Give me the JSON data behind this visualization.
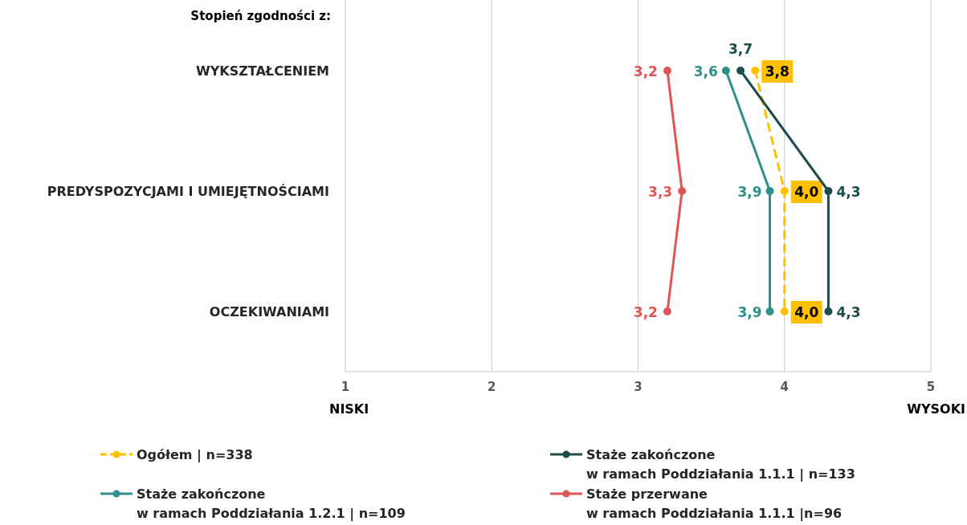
{
  "chart_data": {
    "type": "line",
    "orientation": "horizontal",
    "title": "Stopień zgodności z:",
    "categories": [
      "WYKSZTAŁCENIEM",
      "PREDYSPOZYCJAMI I UMIEJĘTNOŚCIAMI",
      "OCZEKIWANIAMI"
    ],
    "xlim": [
      1,
      5
    ],
    "xticks": [
      1,
      2,
      3,
      4,
      5
    ],
    "grid": "x",
    "legend": "bottom",
    "marker": "circle",
    "annotations": [
      "NISKI",
      "WYSOKI"
    ],
    "series": [
      {
        "name": "Ogółem | n=338",
        "color": "#ffc000",
        "line_style": "dashed",
        "values": [
          3.8,
          4.0,
          4.0
        ],
        "value_labels": [
          "3,8",
          "4,0",
          "4,0"
        ]
      },
      {
        "name": "Staże zakończone\nw ramach Poddziałania 1.1.1 | n=133",
        "color": "#1e4b4b",
        "line_style": "solid",
        "values": [
          3.7,
          4.3,
          4.3
        ],
        "value_labels": [
          "3,7",
          "4,3",
          "4,3"
        ]
      },
      {
        "name": "Staże zakończone\nw ramach Poddziałania 1.2.1 | n=109",
        "color": "#2e9089",
        "line_style": "solid",
        "values": [
          3.6,
          3.9,
          3.9
        ],
        "value_labels": [
          "3,6",
          "3,9",
          "3,9"
        ]
      },
      {
        "name": "Staże przerwane\nw ramach Poddziałania 1.1.1 |n=96",
        "color": "#e05555",
        "line_style": "solid",
        "values": [
          3.2,
          3.3,
          3.2
        ],
        "value_labels": [
          "3,2",
          "3,3",
          "3,2"
        ]
      }
    ]
  }
}
